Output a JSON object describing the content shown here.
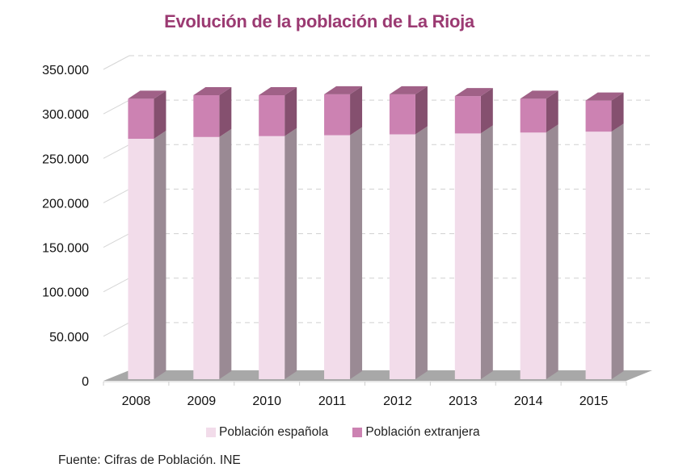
{
  "chart_data": {
    "type": "bar",
    "stacked": true,
    "three_d": true,
    "title": "Evolución de la población de La Rioja",
    "categories": [
      "2008",
      "2009",
      "2010",
      "2011",
      "2012",
      "2013",
      "2014",
      "2015"
    ],
    "series": [
      {
        "name": "Población española",
        "color": "#f2dcea",
        "values": [
          272000,
          274000,
          275000,
          276000,
          277000,
          278000,
          279000,
          280000
        ]
      },
      {
        "name": "Población extranjera",
        "color": "#cc82b2",
        "values": [
          45000,
          47000,
          46000,
          46000,
          45000,
          42000,
          38000,
          35000
        ]
      }
    ],
    "ylim": [
      0,
      350000
    ],
    "yticks": [
      0,
      50000,
      100000,
      150000,
      200000,
      250000,
      300000,
      350000
    ],
    "ytick_labels": [
      "0",
      "50.000",
      "100.000",
      "150.000",
      "200.000",
      "250.000",
      "300.000",
      "350.000"
    ],
    "xlabel": "",
    "ylabel": "",
    "grid": true,
    "legend_position": "bottom"
  },
  "source": "Fuente: Cifras de Población. INE",
  "colors": {
    "title": "#9b3a72",
    "spanish_front": "#f2dcea",
    "spanish_side": "#9a8a94",
    "foreign_front": "#cc82b2",
    "foreign_side": "#85506f",
    "foreign_top": "#a06187",
    "floor": "#a8a8a8"
  }
}
